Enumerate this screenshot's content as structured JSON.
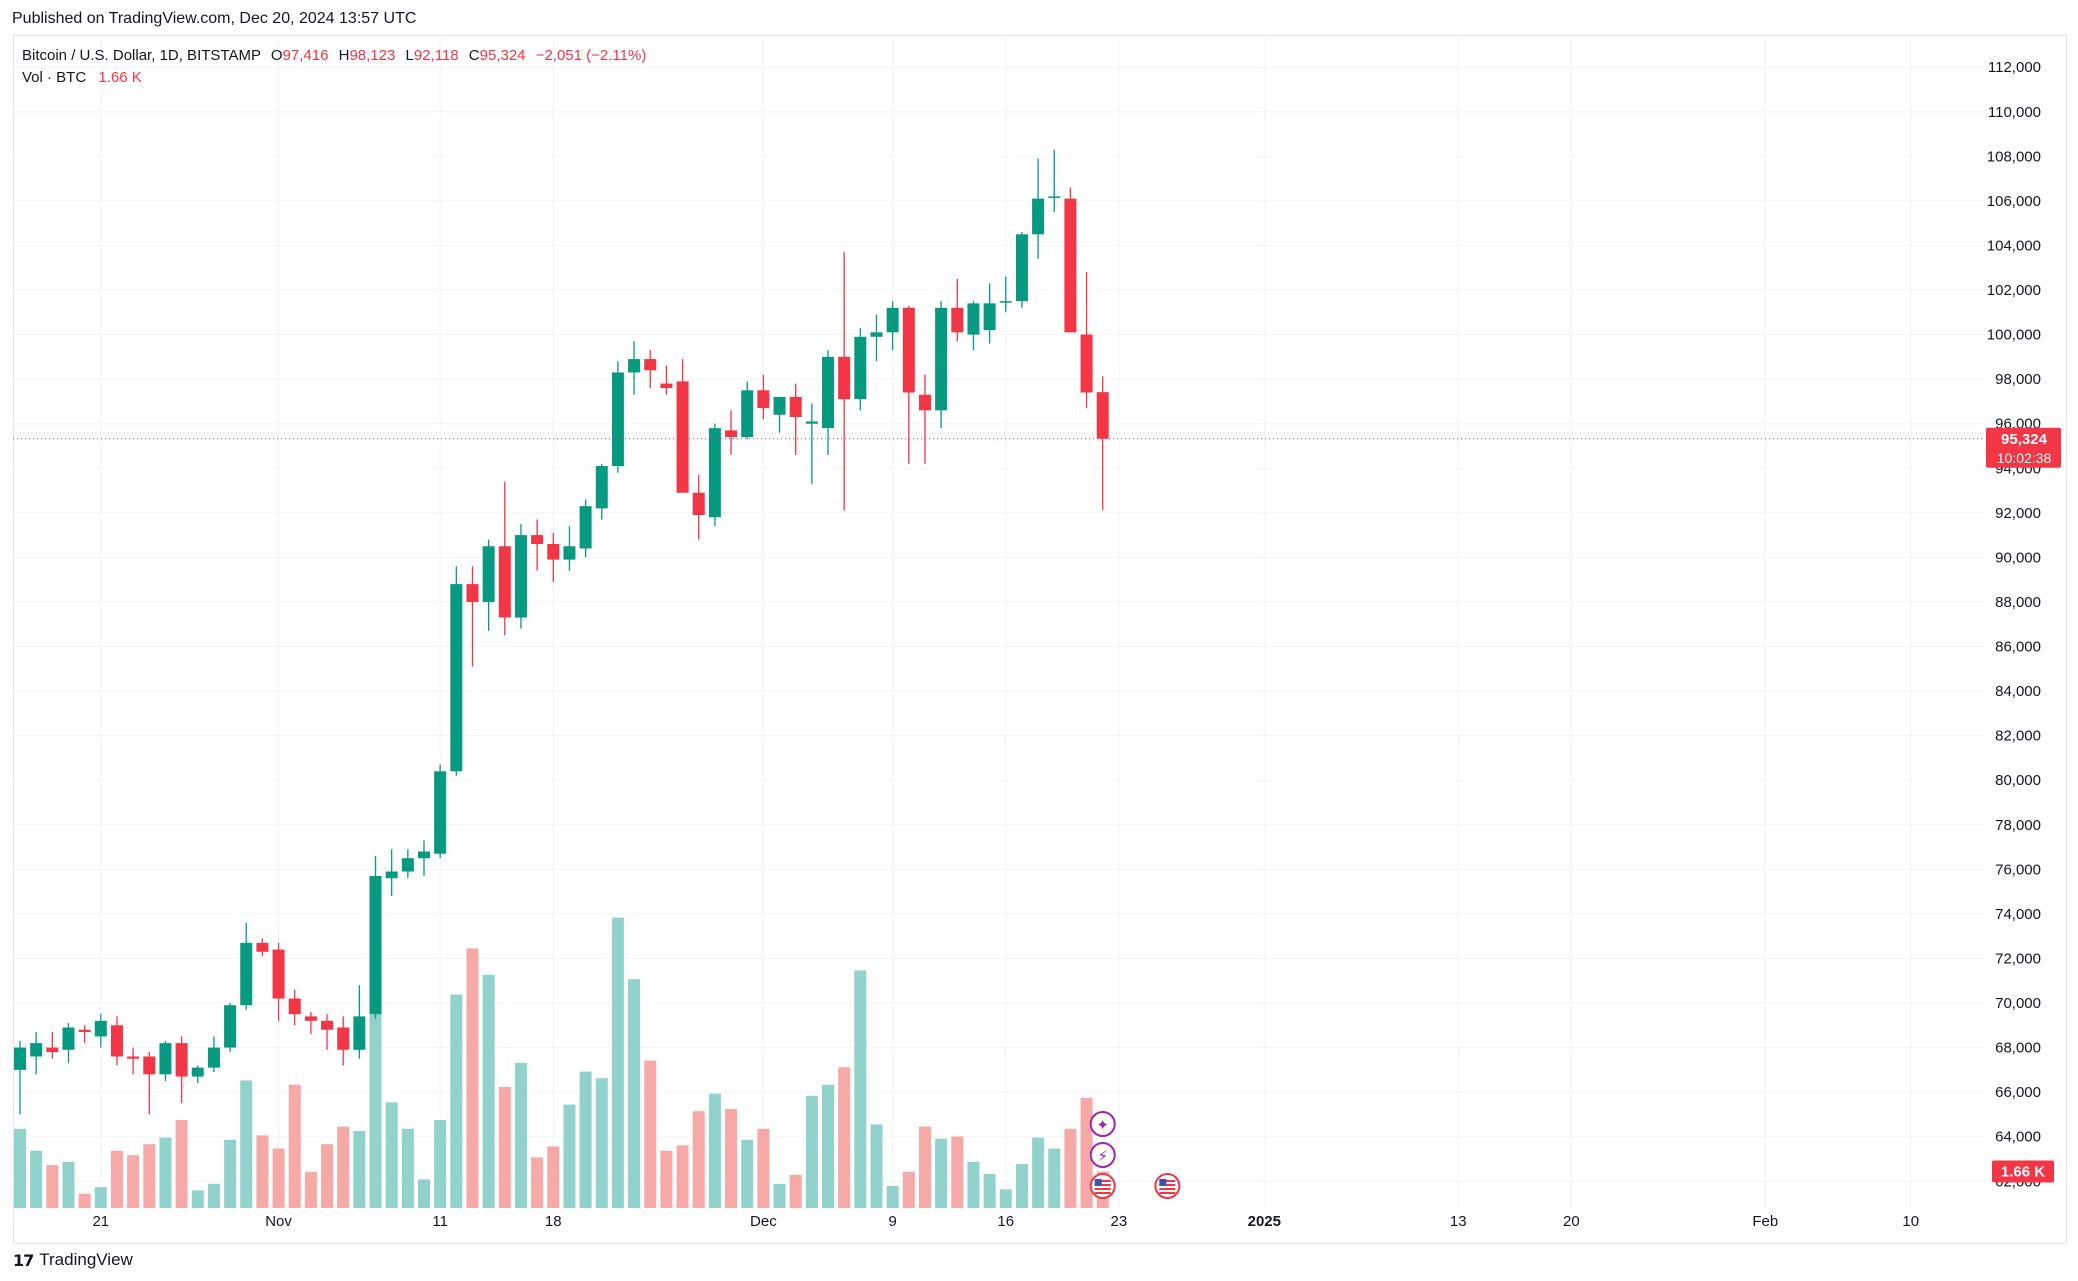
{
  "header": {
    "published": "Published on TradingView.com, Dec 20, 2024 13:57 UTC"
  },
  "legend": {
    "symbol": "Bitcoin / U.S. Dollar, 1D, BITSTAMP",
    "o_label": "O",
    "o_value": "97,416",
    "h_label": "H",
    "h_value": "98,123",
    "l_label": "L",
    "l_value": "92,118",
    "c_label": "C",
    "c_value": "95,324",
    "change": "−2,051 (−2.11%)",
    "vol_label": "Vol · BTC",
    "vol_value": "1.66 K"
  },
  "price_tag": {
    "price": "95,324",
    "countdown": "10:02:38"
  },
  "volume_tag": "1.66 K",
  "footer": {
    "brand": "TradingView",
    "logo_glyph": "17"
  },
  "colors": {
    "up": "#089981",
    "down": "#f23645",
    "vol_up": "#92d2cc",
    "vol_down": "#f7a9a7",
    "grid": "#f0f3fa",
    "axis_text": "#131722",
    "price_line": "#f23645",
    "event_icon": "#9c27b0"
  },
  "chart_data": {
    "type": "candlestick",
    "title": "",
    "xlabel": "",
    "ylabel": "",
    "price_range": [
      60800,
      113400
    ],
    "y_ticks": [
      62000,
      64000,
      66000,
      68000,
      70000,
      72000,
      74000,
      76000,
      78000,
      80000,
      82000,
      84000,
      86000,
      88000,
      90000,
      92000,
      94000,
      96000,
      98000,
      100000,
      102000,
      104000,
      106000,
      108000,
      110000,
      112000
    ],
    "x_ticks": [
      {
        "label": "21",
        "day": 5,
        "bold": false
      },
      {
        "label": "Nov",
        "day": 16,
        "bold": false
      },
      {
        "label": "11",
        "day": 26,
        "bold": false
      },
      {
        "label": "18",
        "day": 33,
        "bold": false
      },
      {
        "label": "Dec",
        "day": 46,
        "bold": false
      },
      {
        "label": "9",
        "day": 54,
        "bold": false
      },
      {
        "label": "16",
        "day": 61,
        "bold": false
      },
      {
        "label": "23",
        "day": 68,
        "bold": false
      },
      {
        "label": "2025",
        "day": 77,
        "bold": true
      },
      {
        "label": "13",
        "day": 89,
        "bold": false
      },
      {
        "label": "20",
        "day": 96,
        "bold": false
      },
      {
        "label": "Feb",
        "day": 108,
        "bold": false
      },
      {
        "label": "10",
        "day": 117,
        "bold": false
      }
    ],
    "series": [
      {
        "date": "2024-10-16",
        "open": 67000,
        "high": 68300,
        "low": 65000,
        "close": 68000,
        "volume": 3600
      },
      {
        "date": "2024-10-17",
        "open": 67600,
        "high": 68700,
        "low": 66800,
        "close": 68200,
        "volume": 2600
      },
      {
        "date": "2024-10-18",
        "open": 68000,
        "high": 68700,
        "low": 67500,
        "close": 67800,
        "volume": 1950
      },
      {
        "date": "2024-10-19",
        "open": 67900,
        "high": 69100,
        "low": 67300,
        "close": 68900,
        "volume": 2100
      },
      {
        "date": "2024-10-20",
        "open": 68800,
        "high": 69000,
        "low": 68200,
        "close": 68700,
        "volume": 650
      },
      {
        "date": "2024-10-21",
        "open": 68500,
        "high": 69500,
        "low": 68000,
        "close": 69200,
        "volume": 950
      },
      {
        "date": "2024-10-22",
        "open": 69000,
        "high": 69400,
        "low": 67200,
        "close": 67600,
        "volume": 2600
      },
      {
        "date": "2024-10-23",
        "open": 67600,
        "high": 68000,
        "low": 66800,
        "close": 67500,
        "volume": 2400
      },
      {
        "date": "2024-10-24",
        "open": 67600,
        "high": 67800,
        "low": 65000,
        "close": 66800,
        "volume": 2900
      },
      {
        "date": "2024-10-25",
        "open": 66800,
        "high": 68300,
        "low": 66500,
        "close": 68200,
        "volume": 3200
      },
      {
        "date": "2024-10-26",
        "open": 68200,
        "high": 68500,
        "low": 65500,
        "close": 66700,
        "volume": 4000
      },
      {
        "date": "2024-10-27",
        "open": 66700,
        "high": 67200,
        "low": 66400,
        "close": 67100,
        "volume": 800
      },
      {
        "date": "2024-10-28",
        "open": 67100,
        "high": 68500,
        "low": 66900,
        "close": 68000,
        "volume": 1100
      },
      {
        "date": "2024-10-29",
        "open": 68000,
        "high": 70000,
        "low": 67800,
        "close": 69900,
        "volume": 3100
      },
      {
        "date": "2024-10-30",
        "open": 69900,
        "high": 73600,
        "low": 69700,
        "close": 72700,
        "volume": 5800
      },
      {
        "date": "2024-10-31",
        "open": 72700,
        "high": 72900,
        "low": 72100,
        "close": 72300,
        "volume": 3300
      },
      {
        "date": "2024-11-01",
        "open": 72400,
        "high": 72700,
        "low": 69200,
        "close": 70200,
        "volume": 2700
      },
      {
        "date": "2024-11-02",
        "open": 70200,
        "high": 70600,
        "low": 69000,
        "close": 69500,
        "volume": 5600
      },
      {
        "date": "2024-11-03",
        "open": 69400,
        "high": 69600,
        "low": 68600,
        "close": 69200,
        "volume": 1650
      },
      {
        "date": "2024-11-04",
        "open": 69200,
        "high": 69500,
        "low": 67900,
        "close": 68800,
        "volume": 2900
      },
      {
        "date": "2024-11-05",
        "open": 68900,
        "high": 69400,
        "low": 67200,
        "close": 67900,
        "volume": 3700
      },
      {
        "date": "2024-11-06",
        "open": 67900,
        "high": 70800,
        "low": 67500,
        "close": 69400,
        "volume": 3500
      },
      {
        "date": "2024-11-07",
        "open": 69500,
        "high": 76600,
        "low": 69300,
        "close": 75700,
        "volume": 12000
      },
      {
        "date": "2024-11-08",
        "open": 75600,
        "high": 76900,
        "low": 74800,
        "close": 75900,
        "volume": 4800
      },
      {
        "date": "2024-11-09",
        "open": 75900,
        "high": 76900,
        "low": 75600,
        "close": 76500,
        "volume": 3600
      },
      {
        "date": "2024-11-10",
        "open": 76500,
        "high": 77300,
        "low": 75700,
        "close": 76800,
        "volume": 1300
      },
      {
        "date": "2024-11-11",
        "open": 76700,
        "high": 80700,
        "low": 76500,
        "close": 80400,
        "volume": 4000
      },
      {
        "date": "2024-11-12",
        "open": 80400,
        "high": 89600,
        "low": 80200,
        "close": 88800,
        "volume": 9700
      },
      {
        "date": "2024-11-13",
        "open": 88800,
        "high": 89600,
        "low": 85100,
        "close": 88000,
        "volume": 11800
      },
      {
        "date": "2024-11-14",
        "open": 88000,
        "high": 90800,
        "low": 86700,
        "close": 90500,
        "volume": 10600
      },
      {
        "date": "2024-11-15",
        "open": 90500,
        "high": 93400,
        "low": 86500,
        "close": 87300,
        "volume": 5500
      },
      {
        "date": "2024-11-16",
        "open": 87300,
        "high": 91500,
        "low": 86800,
        "close": 91000,
        "volume": 6600
      },
      {
        "date": "2024-11-17",
        "open": 91000,
        "high": 91700,
        "low": 89400,
        "close": 90600,
        "volume": 2300
      },
      {
        "date": "2024-11-18",
        "open": 90600,
        "high": 91100,
        "low": 88900,
        "close": 89900,
        "volume": 2800
      },
      {
        "date": "2024-11-19",
        "open": 89900,
        "high": 91400,
        "low": 89400,
        "close": 90500,
        "volume": 4700
      },
      {
        "date": "2024-11-20",
        "open": 90400,
        "high": 92600,
        "low": 90000,
        "close": 92300,
        "volume": 6200
      },
      {
        "date": "2024-11-21",
        "open": 92200,
        "high": 94200,
        "low": 91700,
        "close": 94100,
        "volume": 5900
      },
      {
        "date": "2024-11-22",
        "open": 94100,
        "high": 98800,
        "low": 93800,
        "close": 98300,
        "volume": 13200
      },
      {
        "date": "2024-11-23",
        "open": 98300,
        "high": 99700,
        "low": 97300,
        "close": 98900,
        "volume": 10400
      },
      {
        "date": "2024-11-24",
        "open": 98900,
        "high": 99300,
        "low": 97600,
        "close": 98400,
        "volume": 6700
      },
      {
        "date": "2024-11-25",
        "open": 97800,
        "high": 98600,
        "low": 97300,
        "close": 97600,
        "volume": 2600
      },
      {
        "date": "2024-11-26",
        "open": 97900,
        "high": 98900,
        "low": 93000,
        "close": 92900,
        "volume": 2850
      },
      {
        "date": "2024-11-27",
        "open": 92900,
        "high": 93700,
        "low": 90800,
        "close": 91900,
        "volume": 4400
      },
      {
        "date": "2024-11-28",
        "open": 91800,
        "high": 96000,
        "low": 91400,
        "close": 95800,
        "volume": 5200
      },
      {
        "date": "2024-11-29",
        "open": 95700,
        "high": 96600,
        "low": 94600,
        "close": 95400,
        "volume": 4500
      },
      {
        "date": "2024-11-30",
        "open": 95400,
        "high": 97900,
        "low": 95300,
        "close": 97500,
        "volume": 3100
      },
      {
        "date": "2024-12-01",
        "open": 97500,
        "high": 98200,
        "low": 96200,
        "close": 96700,
        "volume": 3600
      },
      {
        "date": "2024-12-02",
        "open": 96400,
        "high": 97200,
        "low": 95600,
        "close": 97200,
        "volume": 1100
      },
      {
        "date": "2024-12-03",
        "open": 97200,
        "high": 97800,
        "low": 94600,
        "close": 96300,
        "volume": 1500
      },
      {
        "date": "2024-12-04",
        "open": 96000,
        "high": 96900,
        "low": 93300,
        "close": 96100,
        "volume": 5100
      },
      {
        "date": "2024-12-05",
        "open": 95800,
        "high": 99300,
        "low": 94600,
        "close": 99000,
        "volume": 5600
      },
      {
        "date": "2024-12-06",
        "open": 99000,
        "high": 103700,
        "low": 92100,
        "close": 97100,
        "volume": 6400
      },
      {
        "date": "2024-12-07",
        "open": 97100,
        "high": 100300,
        "low": 96600,
        "close": 99900,
        "volume": 10800
      },
      {
        "date": "2024-12-08",
        "open": 99900,
        "high": 100900,
        "low": 98800,
        "close": 100100,
        "volume": 3800
      },
      {
        "date": "2024-12-09",
        "open": 100100,
        "high": 101500,
        "low": 99300,
        "close": 101200,
        "volume": 1000
      },
      {
        "date": "2024-12-10",
        "open": 101200,
        "high": 101300,
        "low": 94200,
        "close": 97400,
        "volume": 1650
      },
      {
        "date": "2024-12-11",
        "open": 97300,
        "high": 98200,
        "low": 94200,
        "close": 96600,
        "volume": 3700
      },
      {
        "date": "2024-12-12",
        "open": 96600,
        "high": 101500,
        "low": 95800,
        "close": 101200,
        "volume": 3150
      },
      {
        "date": "2024-12-13",
        "open": 101200,
        "high": 102500,
        "low": 99700,
        "close": 100100,
        "volume": 3250
      },
      {
        "date": "2024-12-14",
        "open": 100000,
        "high": 101500,
        "low": 99300,
        "close": 101400,
        "volume": 2100
      },
      {
        "date": "2024-12-15",
        "open": 100200,
        "high": 102300,
        "low": 99600,
        "close": 101400,
        "volume": 1550
      },
      {
        "date": "2024-12-16",
        "open": 101500,
        "high": 102600,
        "low": 101000,
        "close": 101500,
        "volume": 850
      },
      {
        "date": "2024-12-17",
        "open": 101500,
        "high": 104600,
        "low": 101200,
        "close": 104500,
        "volume": 2000
      },
      {
        "date": "2024-12-18",
        "open": 104500,
        "high": 107900,
        "low": 103400,
        "close": 106100,
        "volume": 3200
      },
      {
        "date": "2024-12-19",
        "open": 106200,
        "high": 108300,
        "low": 105500,
        "close": 106200,
        "volume": 2700
      },
      {
        "date": "2024-12-20",
        "open": 106100,
        "high": 106600,
        "low": 100100,
        "close": 100100,
        "volume": 3600
      },
      {
        "date": "2024-12-21",
        "open": 100000,
        "high": 102800,
        "low": 96700,
        "close": 97400,
        "volume": 5000
      },
      {
        "date": "2024-12-22",
        "open": 97416,
        "high": 98123,
        "low": 92118,
        "close": 95324,
        "volume": 1660
      }
    ],
    "events": [
      {
        "day": 67,
        "icon": "star-icon"
      },
      {
        "day": 67,
        "icon": "lightning-icon"
      },
      {
        "day": 67,
        "icon": "us-flag-icon"
      },
      {
        "day": 71,
        "icon": "us-flag-icon"
      }
    ],
    "last_price": 95324,
    "grid": true,
    "legend_position": "top-left"
  }
}
